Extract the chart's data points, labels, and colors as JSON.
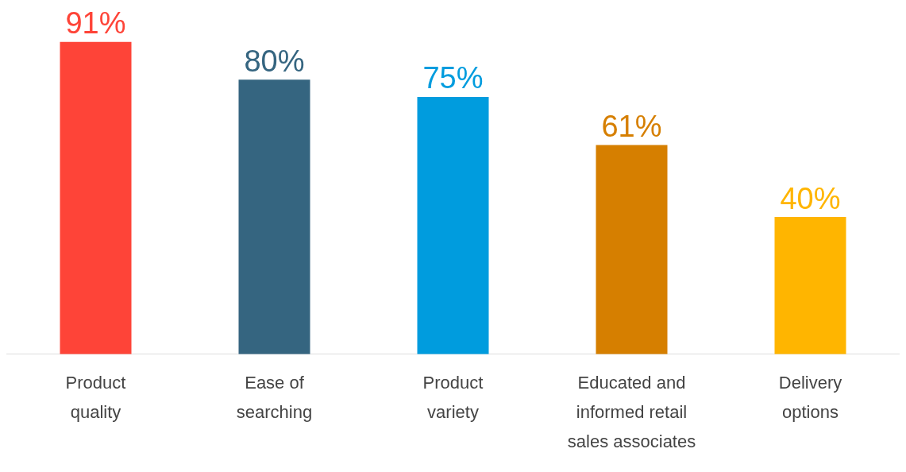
{
  "chart_data": {
    "type": "bar",
    "categories": [
      "Product\nquality",
      "Ease of\nsearching",
      "Product\nvariety",
      "Educated and\ninformed retail\nsales associates",
      "Delivery\noptions"
    ],
    "values": [
      91,
      80,
      75,
      61,
      40
    ],
    "colors": [
      "#fe4438",
      "#356580",
      "#009cde",
      "#d67f00",
      "#ffb500"
    ],
    "value_labels": [
      "91%",
      "80%",
      "75%",
      "61%",
      "40%"
    ],
    "grid": false,
    "legend": false
  }
}
